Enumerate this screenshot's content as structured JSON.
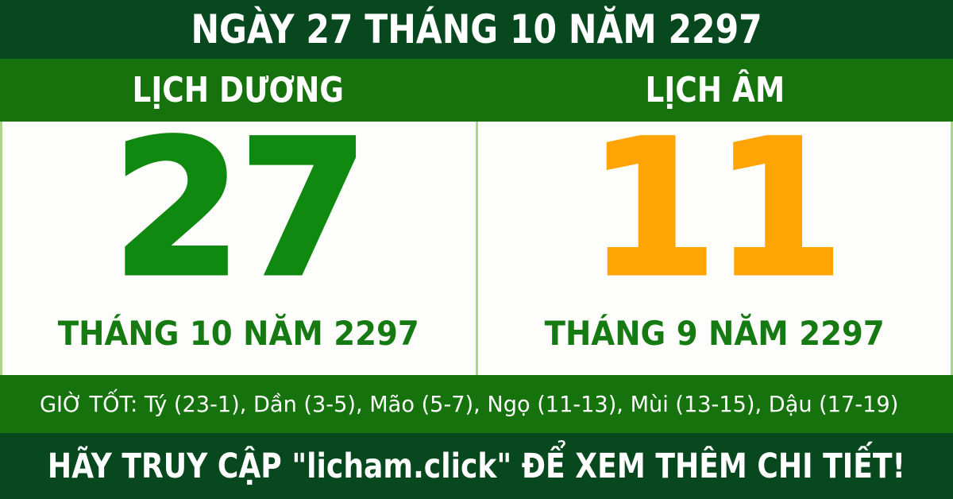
{
  "colors": {
    "banner_green": "#08481f",
    "band_green": "#15720c",
    "day_green": "#0f890f",
    "month_green": "#157a12",
    "day_orange": "#ffa405",
    "divider_green": "#a9d687",
    "panel_white": "#fdfdfb",
    "text_white": "#ffffff"
  },
  "top_banner": {
    "text": "NGÀY 27 THÁNG 10 NĂM 2297"
  },
  "calendar": {
    "solar": {
      "header": "LỊCH DƯƠNG",
      "day": "27",
      "month_year": "THÁNG 10 NĂM 2297"
    },
    "lunar": {
      "header": "LỊCH ÂM",
      "day": "11",
      "month_year": "THÁNG 9 NĂM 2297"
    }
  },
  "good_hours": {
    "text": "GIỜ TỐT: Tý (23-1), Dần (3-5), Mão (5-7), Ngọ (11-13), Mùi (13-15), Dậu (17-19)"
  },
  "footer": {
    "text": "HÃY TRUY CẬP \"licham.click\" ĐỂ XEM THÊM CHI TIẾT!"
  }
}
